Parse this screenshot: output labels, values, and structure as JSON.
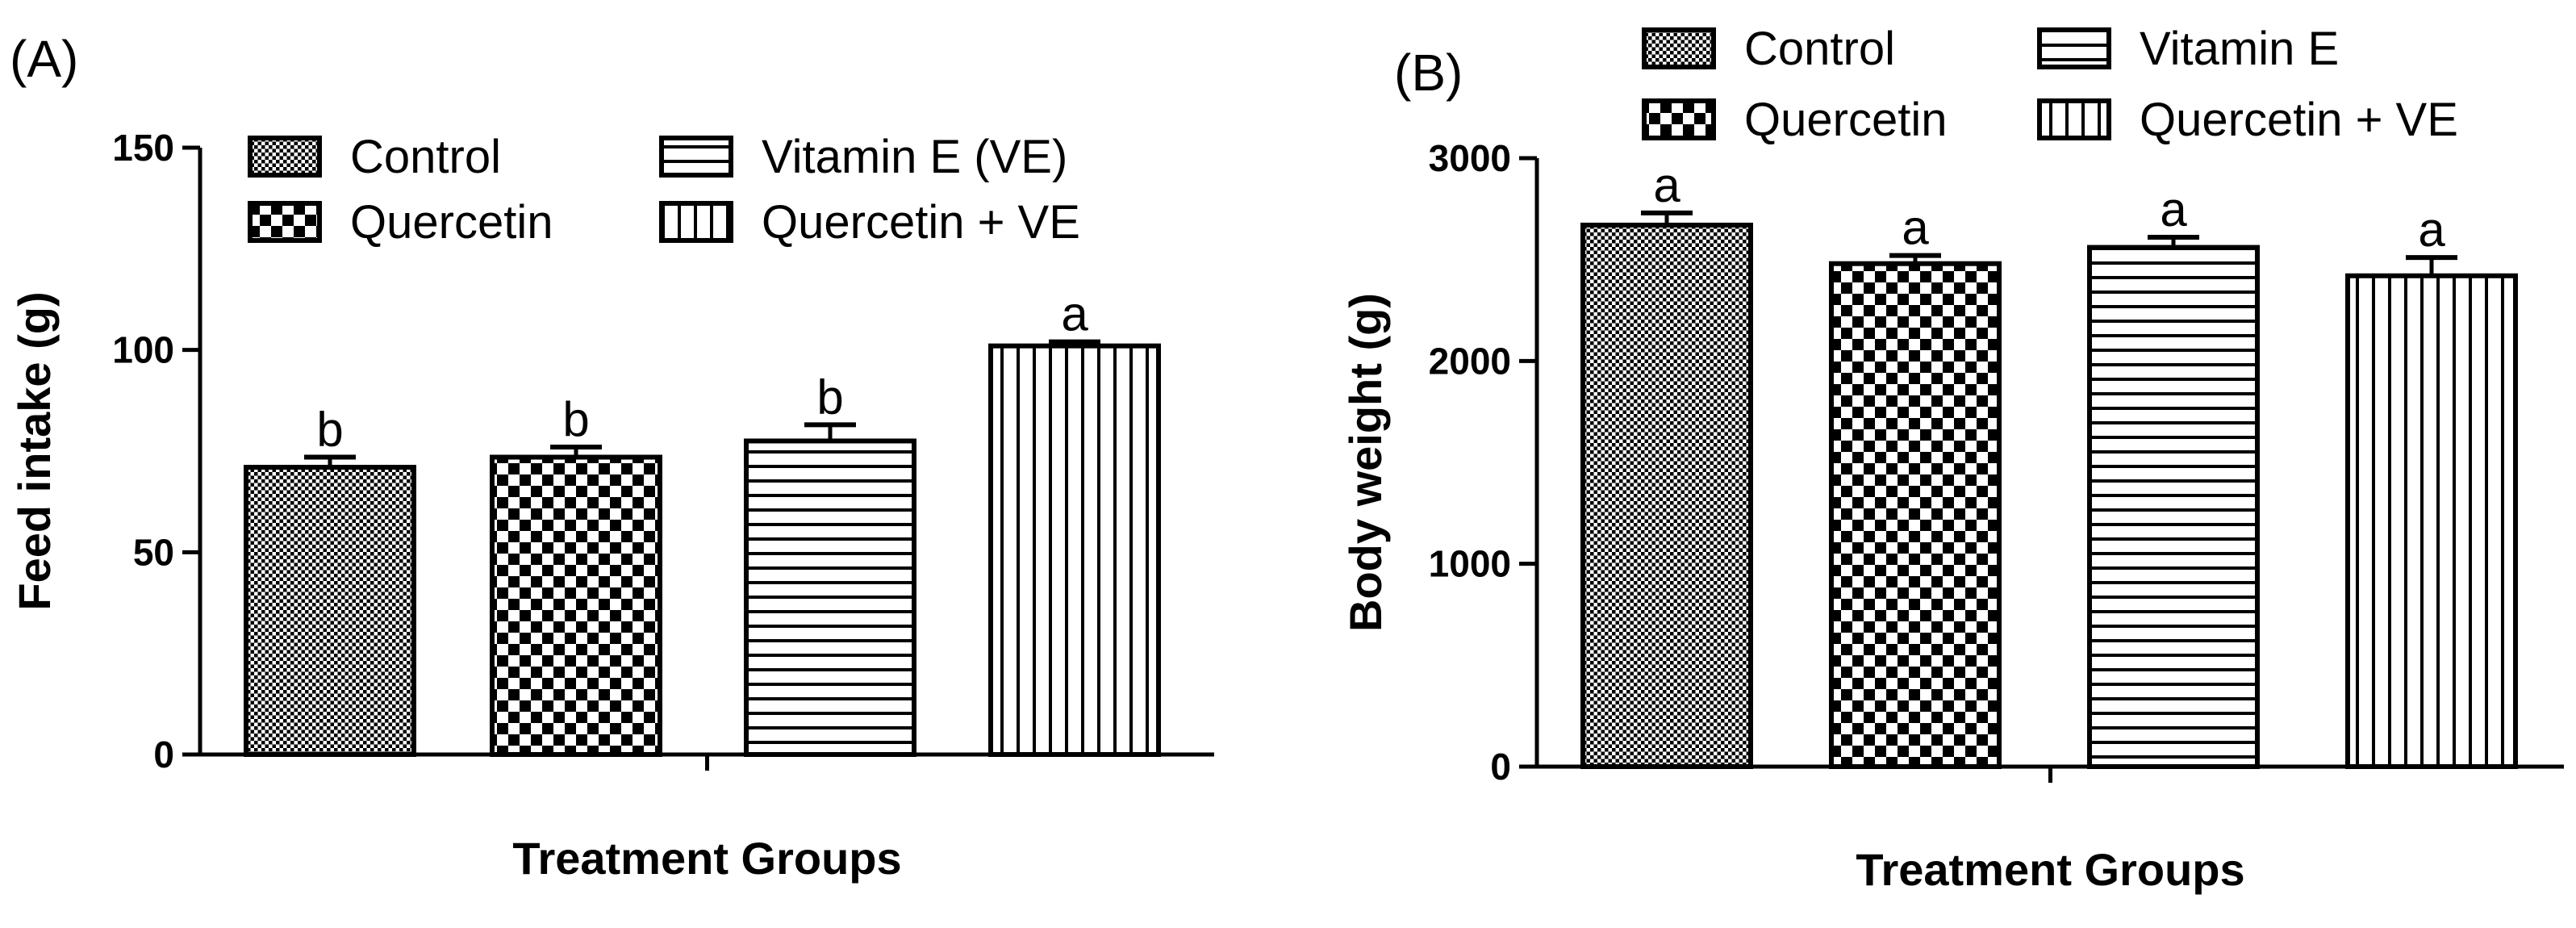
{
  "chart_data": [
    {
      "type": "bar",
      "panel": "(A)",
      "title": "",
      "xlabel": "Treatment Groups",
      "ylabel": "Feed intake (g)",
      "ylim": [
        0,
        150
      ],
      "yticks": [
        0,
        50,
        100,
        150
      ],
      "categories": [
        "Control",
        "Quercetin",
        "Vitamin E (VE)",
        "Quercetin + VE"
      ],
      "values": [
        71,
        73.5,
        77.5,
        101
      ],
      "errors": [
        2.5,
        2.5,
        4,
        1
      ],
      "significance": [
        "b",
        "b",
        "b",
        "a"
      ],
      "legend": [
        "Control",
        "Quercetin",
        "Vitamin E (VE)",
        "Quercetin + VE"
      ],
      "legend_position": "top"
    },
    {
      "type": "bar",
      "panel": "(B)",
      "title": "",
      "xlabel": "Treatment Groups",
      "ylabel": "Body weight (g)",
      "ylim": [
        0,
        3000
      ],
      "yticks": [
        0,
        1000,
        2000,
        3000
      ],
      "categories": [
        "Control",
        "Quercetin",
        "Vitamin E",
        "Quercetin + VE"
      ],
      "values": [
        2670,
        2480,
        2560,
        2420
      ],
      "errors": [
        60,
        40,
        50,
        90
      ],
      "significance": [
        "a",
        "a",
        "a",
        "a"
      ],
      "legend": [
        "Control",
        "Quercetin",
        "Vitamin E",
        "Quercetin + VE"
      ],
      "legend_position": "top"
    }
  ],
  "colors": {
    "ink": "#000000",
    "background": "#ffffff"
  },
  "patterns": [
    "fine-check-icon",
    "checkerboard-icon",
    "horizontal-stripes-icon",
    "vertical-stripes-icon"
  ]
}
